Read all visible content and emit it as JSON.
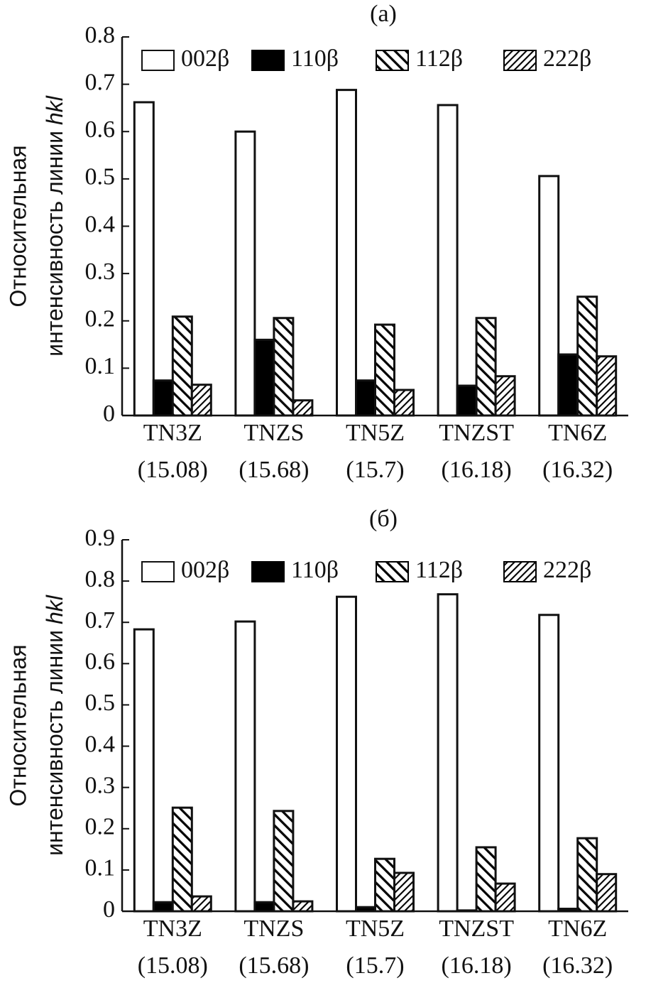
{
  "chart_data": [
    {
      "type": "bar",
      "title": "(a)",
      "ylabel": [
        "Относительная",
        "интенсивность линии",
        "hkl"
      ],
      "categories": [
        [
          "TN3Z",
          "(15.08)"
        ],
        [
          "TNZS",
          "(15.68)"
        ],
        [
          "TN5Z",
          "(15.7)"
        ],
        [
          "TNZST",
          "(16.18)"
        ],
        [
          "TN6Z",
          "(16.32)"
        ]
      ],
      "series": [
        {
          "name": "002β",
          "color": "#ffffff",
          "values": [
            0.662,
            0.6,
            0.688,
            0.656,
            0.506
          ]
        },
        {
          "name": "110β",
          "color": "#000000",
          "values": [
            0.074,
            0.16,
            0.074,
            0.063,
            0.129
          ]
        },
        {
          "name": "112β",
          "color": "#000000",
          "hatch": "back",
          "values": [
            0.209,
            0.206,
            0.192,
            0.206,
            0.251
          ]
        },
        {
          "name": "222β",
          "color": "#000000",
          "hatch": "forward",
          "values": [
            0.065,
            0.032,
            0.054,
            0.083,
            0.125
          ]
        }
      ],
      "ylim": [
        0,
        0.8
      ],
      "yticks": [
        0,
        0.1,
        0.2,
        0.3,
        0.4,
        0.5,
        0.6,
        0.7,
        0.8
      ],
      "legend": "top"
    },
    {
      "type": "bar",
      "title": "(б)",
      "ylabel": [
        "Относительная",
        "интенсивность линии",
        "hkl"
      ],
      "categories": [
        [
          "TN3Z",
          "(15.08)"
        ],
        [
          "TNZS",
          "(15.68)"
        ],
        [
          "TN5Z",
          "(15.7)"
        ],
        [
          "TNZST",
          "(16.18)"
        ],
        [
          "TN6Z",
          "(16.32)"
        ]
      ],
      "series": [
        {
          "name": "002β",
          "color": "#ffffff",
          "values": [
            0.683,
            0.702,
            0.762,
            0.768,
            0.718
          ]
        },
        {
          "name": "110β",
          "color": "#000000",
          "values": [
            0.022,
            0.022,
            0.01,
            0.002,
            0.006
          ]
        },
        {
          "name": "112β",
          "color": "#000000",
          "hatch": "back",
          "values": [
            0.251,
            0.243,
            0.127,
            0.155,
            0.177
          ]
        },
        {
          "name": "222β",
          "color": "#000000",
          "hatch": "forward",
          "values": [
            0.036,
            0.024,
            0.093,
            0.067,
            0.09
          ]
        }
      ],
      "ylim": [
        0,
        0.9
      ],
      "yticks": [
        0,
        0.1,
        0.2,
        0.3,
        0.4,
        0.5,
        0.6,
        0.7,
        0.8,
        0.9
      ],
      "legend": "top"
    }
  ]
}
